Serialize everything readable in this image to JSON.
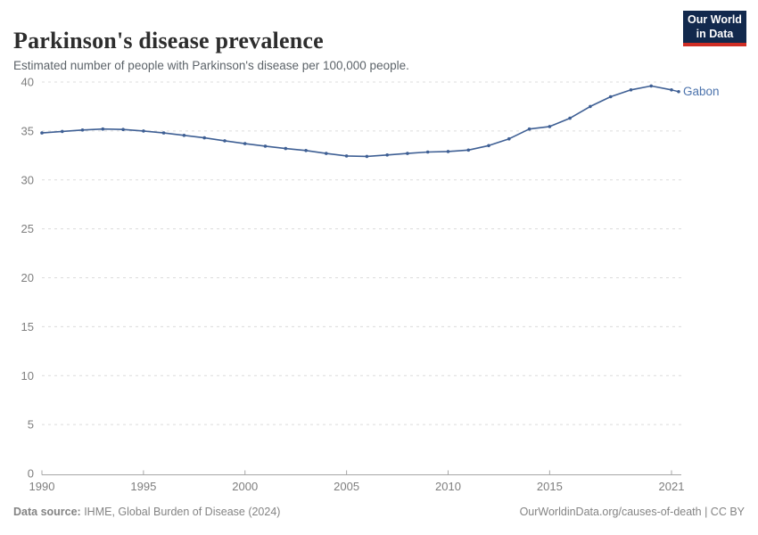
{
  "header": {
    "title": "Parkinson's disease prevalence",
    "subtitle": "Estimated number of people with Parkinson's disease per 100,000 people.",
    "logo": {
      "line1": "Our World",
      "line2": "in Data",
      "bg_color": "#12294d",
      "accent_color": "#cf2d24"
    }
  },
  "chart_data": {
    "type": "line",
    "title": "Parkinson's disease prevalence",
    "subtitle": "Estimated number of people with Parkinson's disease per 100,000 people.",
    "xlabel": "",
    "ylabel": "",
    "xlim": [
      1990,
      2021
    ],
    "ylim": [
      0,
      40
    ],
    "xticks": [
      1990,
      1995,
      2000,
      2005,
      2010,
      2015,
      2021
    ],
    "yticks": [
      0,
      5,
      10,
      15,
      20,
      25,
      30,
      35,
      40
    ],
    "grid": "horizontal-dashed",
    "legend_position": "end-of-line",
    "x": [
      1990,
      1991,
      1992,
      1993,
      1994,
      1995,
      1996,
      1997,
      1998,
      1999,
      2000,
      2001,
      2002,
      2003,
      2004,
      2005,
      2006,
      2007,
      2008,
      2009,
      2010,
      2011,
      2012,
      2013,
      2014,
      2015,
      2016,
      2017,
      2018,
      2019,
      2020,
      2021
    ],
    "series": [
      {
        "name": "Gabon",
        "color": "#3e5f94",
        "label_color": "#4d74ad",
        "values": [
          34.8,
          34.95,
          35.1,
          35.2,
          35.15,
          35.0,
          34.8,
          34.55,
          34.3,
          34.0,
          33.7,
          33.45,
          33.2,
          33.0,
          32.7,
          32.45,
          32.4,
          32.55,
          32.7,
          32.85,
          32.9,
          33.05,
          33.5,
          34.2,
          35.2,
          35.45,
          36.3,
          37.5,
          38.5,
          39.2,
          39.6,
          39.2
        ]
      }
    ],
    "axis_color": "#a7a7a7",
    "gridline_color": "#dcdcdc",
    "tick_label_color": "#7e7e7e"
  },
  "footer": {
    "source_label": "Data source:",
    "source_text": " IHME, Global Burden of Disease (2024)",
    "link_text": "OurWorldinData.org/causes-of-death | CC BY"
  }
}
